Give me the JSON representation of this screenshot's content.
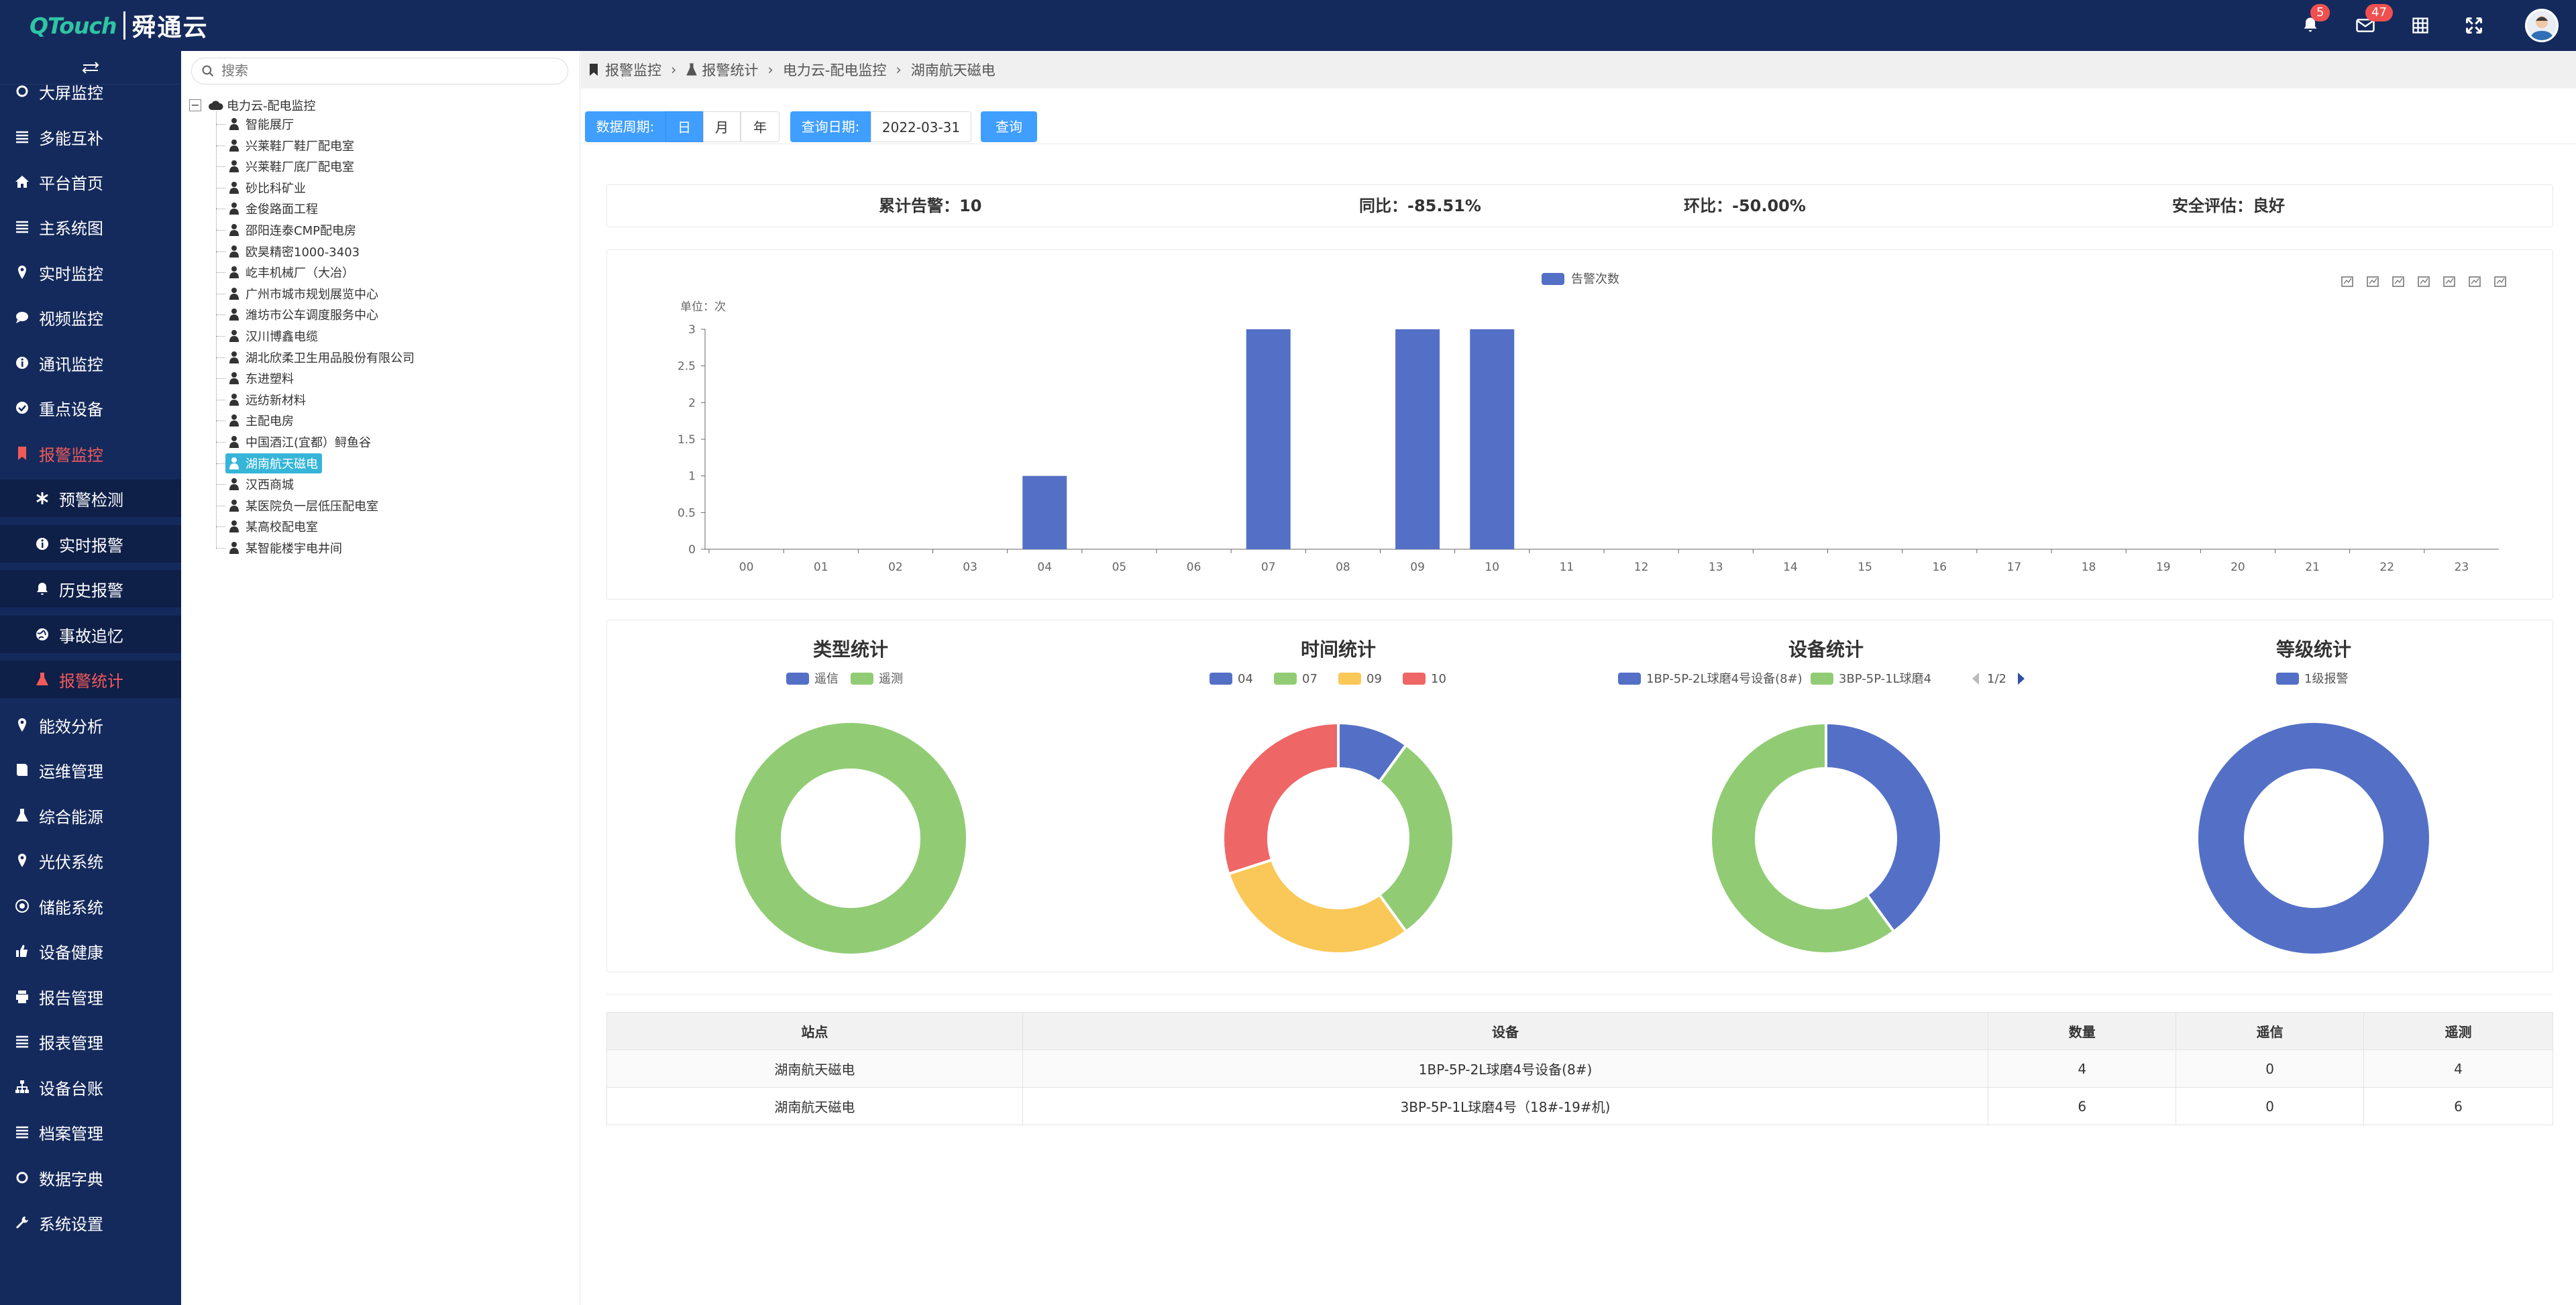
{
  "app": {
    "logo_en": "QTouch",
    "logo_cn": "舜通云"
  },
  "topbar": {
    "bell_count": "5",
    "mail_count": "47"
  },
  "search": {
    "placeholder": "搜索"
  },
  "sidebar": {
    "items": [
      {
        "label": "大屏监控",
        "icon": "circle-icon"
      },
      {
        "label": "多能互补",
        "icon": "list-icon"
      },
      {
        "label": "平台首页",
        "icon": "home-icon"
      },
      {
        "label": "主系统图",
        "icon": "list-icon"
      },
      {
        "label": "实时监控",
        "icon": "pin-icon"
      },
      {
        "label": "视频监控",
        "icon": "chat-icon"
      },
      {
        "label": "通讯监控",
        "icon": "info-icon"
      },
      {
        "label": "重点设备",
        "icon": "check-icon"
      },
      {
        "label": "报警监控",
        "icon": "bookmark-icon",
        "active": true
      },
      {
        "label": "预警检测",
        "icon": "asterisk-icon",
        "sub": true
      },
      {
        "label": "实时报警",
        "icon": "info-icon",
        "sub": true
      },
      {
        "label": "历史报警",
        "icon": "bell-icon",
        "sub": true
      },
      {
        "label": "事故追忆",
        "icon": "globe-icon",
        "sub": true
      },
      {
        "label": "报警统计",
        "icon": "flask-icon",
        "sub": true,
        "active": true
      },
      {
        "label": "能效分析",
        "icon": "pin-icon"
      },
      {
        "label": "运维管理",
        "icon": "book-icon"
      },
      {
        "label": "综合能源",
        "icon": "flask-icon"
      },
      {
        "label": "光伏系统",
        "icon": "pin-icon"
      },
      {
        "label": "储能系统",
        "icon": "target-icon"
      },
      {
        "label": "设备健康",
        "icon": "thumb-icon"
      },
      {
        "label": "报告管理",
        "icon": "print-icon"
      },
      {
        "label": "报表管理",
        "icon": "list-icon"
      },
      {
        "label": "设备台账",
        "icon": "sitemap-icon"
      },
      {
        "label": "档案管理",
        "icon": "list-icon"
      },
      {
        "label": "数据字典",
        "icon": "circle-icon"
      },
      {
        "label": "系统设置",
        "icon": "wrench-icon"
      }
    ]
  },
  "tree": {
    "root": "电力云-配电监控",
    "nodes": [
      "智能展厅",
      "兴莱鞋厂鞋厂配电室",
      "兴莱鞋厂底厂配电室",
      "砂比科矿业",
      "金俊路面工程",
      "邵阳连泰CMP配电房",
      "欧昊精密1000-3403",
      "屹丰机械厂（大冶）",
      "广州市城市规划展览中心",
      "潍坊市公车调度服务中心",
      "汉川博鑫电缆",
      "湖北欣柔卫生用品股份有限公司",
      "东进塑料",
      "远纺新材料",
      "主配电房",
      "中国酒江(宜都）鲟鱼谷",
      "湖南航天磁电",
      "汉西商城",
      "某医院负一层低压配电室",
      "某高校配电室",
      "某智能楼宇电井间"
    ],
    "selected_index": 16
  },
  "breadcrumb": [
    "报警监控",
    "报警统计",
    "电力云-配电监控",
    "湖南航天磁电"
  ],
  "toolbar": {
    "period_label": "数据周期:",
    "period_options": [
      "日",
      "月",
      "年"
    ],
    "date_label": "查询日期:",
    "date_value": "2022-03-31",
    "query": "查询"
  },
  "summary": {
    "total": "累计告警：10",
    "yoy": "同比：-85.51%",
    "mom": "环比：-50.00%",
    "safety": "安全评估：良好"
  },
  "colors": {
    "blue": "#5470c6",
    "green": "#91cc75",
    "yellow": "#fac858",
    "red": "#ee6666",
    "nav_bg": "#152a5c",
    "accent": "#409eff"
  },
  "chart_data": [
    {
      "type": "bar",
      "legend": [
        "告警次数"
      ],
      "unit_label": "单位：次",
      "categories": [
        "00",
        "01",
        "02",
        "03",
        "04",
        "05",
        "06",
        "07",
        "08",
        "09",
        "10",
        "11",
        "12",
        "13",
        "14",
        "15",
        "16",
        "17",
        "18",
        "19",
        "20",
        "21",
        "22",
        "23"
      ],
      "values": [
        0,
        0,
        0,
        0,
        1,
        0,
        0,
        3,
        0,
        3,
        3,
        0,
        0,
        0,
        0,
        0,
        0,
        0,
        0,
        0,
        0,
        0,
        0,
        0
      ],
      "ylim": [
        0,
        3
      ],
      "yticks": [
        "0",
        "0.5",
        "1",
        "1.5",
        "2",
        "2.5",
        "3"
      ]
    },
    {
      "type": "pie",
      "title": "类型统计",
      "legend": [
        "遥信",
        "遥测"
      ],
      "values": [
        0,
        10
      ]
    },
    {
      "type": "pie",
      "title": "时间统计",
      "legend": [
        "04",
        "07",
        "09",
        "10"
      ],
      "values": [
        1,
        3,
        3,
        3
      ]
    },
    {
      "type": "pie",
      "title": "设备统计",
      "legend": [
        "1BP-5P-2L球磨4号设备(8#)",
        "3BP-5P-1L球磨4"
      ],
      "values": [
        4,
        6
      ],
      "pager": "1/2"
    },
    {
      "type": "pie",
      "title": "等级统计",
      "legend": [
        "1级报警"
      ],
      "values": [
        10
      ]
    }
  ],
  "table": {
    "headers": [
      "站点",
      "设备",
      "数量",
      "遥信",
      "遥测"
    ],
    "rows": [
      [
        "湖南航天磁电",
        "1BP-5P-2L球磨4号设备(8#)",
        "4",
        "0",
        "4"
      ],
      [
        "湖南航天磁电",
        "3BP-5P-1L球磨4号（18#-19#机)",
        "6",
        "0",
        "6"
      ]
    ]
  }
}
